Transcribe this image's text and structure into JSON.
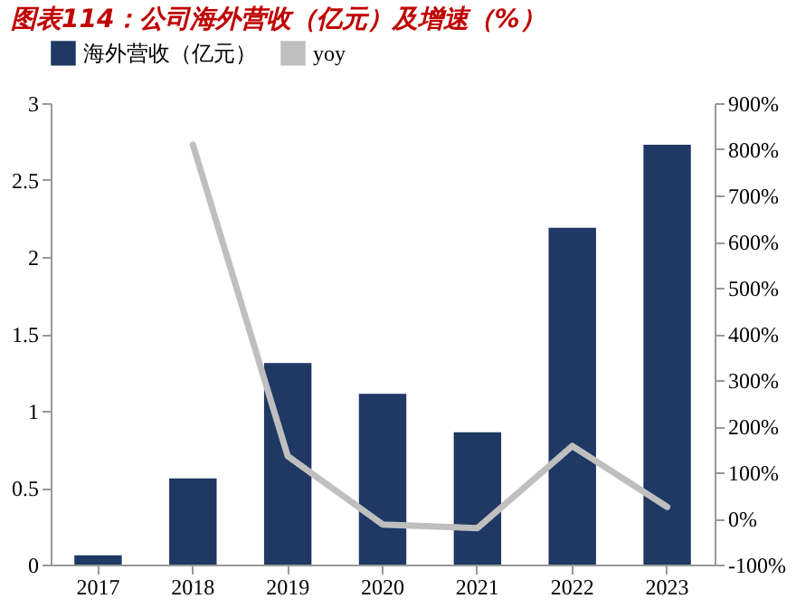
{
  "chart_data": {
    "type": "bar",
    "title": "图表114：公司海外营收（亿元）及增速（%）",
    "categories": [
      "2017",
      "2018",
      "2019",
      "2020",
      "2021",
      "2022",
      "2023"
    ],
    "series": [
      {
        "name": "海外营收（亿元）",
        "color": "#1f3864",
        "values": [
          0.06,
          0.56,
          1.31,
          1.11,
          0.86,
          2.19,
          2.73
        ]
      },
      {
        "name": "yoy",
        "type": "line",
        "axis": "y2",
        "color": "#bfbfbf",
        "values": [
          null,
          810,
          135,
          -13,
          -21,
          157,
          25
        ]
      }
    ],
    "ylim": [
      0,
      3
    ],
    "yticks": [
      0,
      0.5,
      1,
      1.5,
      2,
      2.5,
      3
    ],
    "y2lim": [
      -100,
      900
    ],
    "y2ticks": [
      {
        "value": -100,
        "label": "-100%"
      },
      {
        "value": 0,
        "label": "0%"
      },
      {
        "value": 100,
        "label": "100%"
      },
      {
        "value": 200,
        "label": "200%"
      },
      {
        "value": 300,
        "label": "300%"
      },
      {
        "value": 400,
        "label": "400%"
      },
      {
        "value": 500,
        "label": "500%"
      },
      {
        "value": 600,
        "label": "600%"
      },
      {
        "value": 700,
        "label": "700%"
      },
      {
        "value": 800,
        "label": "800%"
      },
      {
        "value": 900,
        "label": "900%"
      }
    ],
    "grid": false,
    "legend": "top",
    "line_style": "solid",
    "marker": "none"
  }
}
